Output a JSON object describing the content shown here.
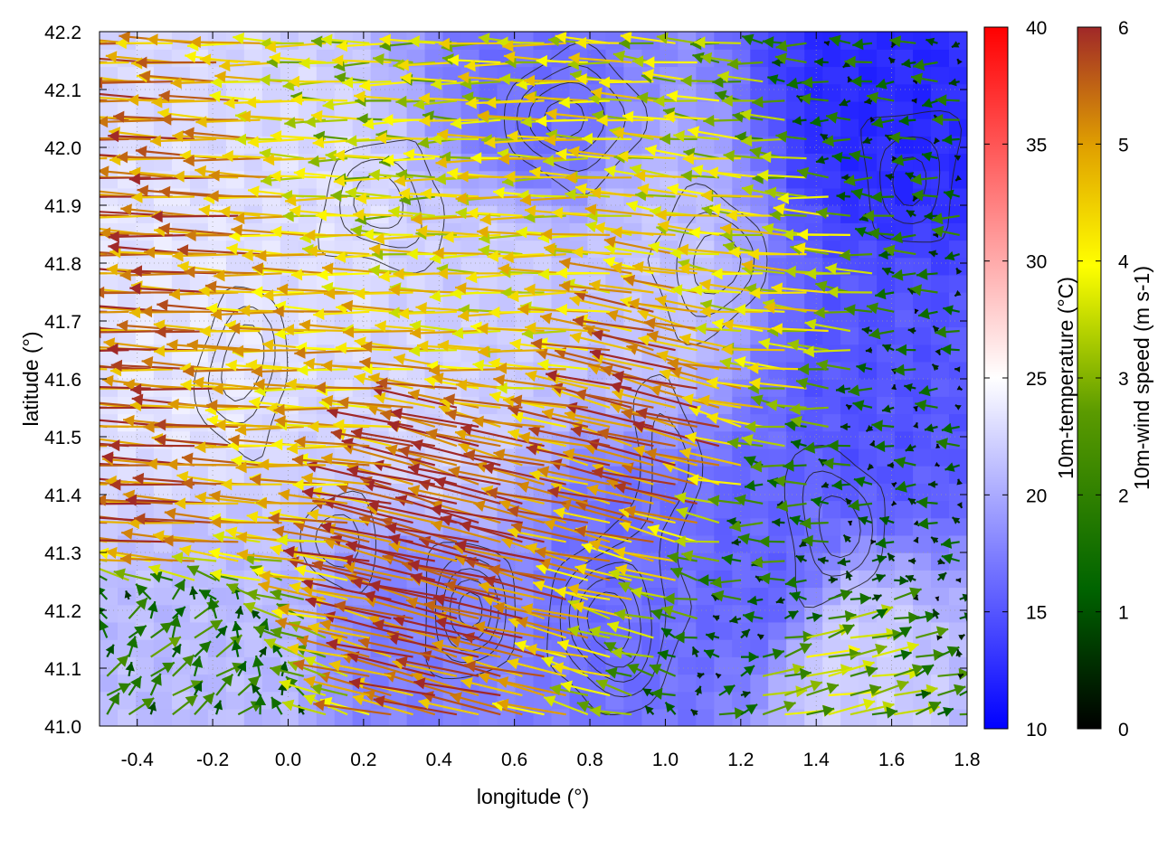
{
  "chart_data": {
    "type": "vector-field",
    "xlabel": "longitude (°)",
    "ylabel": "latitude (°)",
    "xlim": [
      -0.5,
      1.8
    ],
    "ylim": [
      41.0,
      42.2
    ],
    "x_ticks": [
      "-0.4",
      "-0.2",
      "0.0",
      "0.2",
      "0.4",
      "0.6",
      "0.8",
      "1.0",
      "1.2",
      "1.4",
      "1.6",
      "1.8"
    ],
    "y_ticks": [
      "41.0",
      "41.1",
      "41.2",
      "41.3",
      "41.4",
      "41.5",
      "41.6",
      "41.7",
      "41.8",
      "41.9",
      "42.0",
      "42.1",
      "42.2"
    ],
    "grid": true,
    "background_field": {
      "name": "10m-temperature",
      "colorbar_label": "10m-temperature (°C)",
      "range": [
        10,
        40
      ],
      "ticks": [
        "10",
        "15",
        "20",
        "25",
        "30",
        "35",
        "40"
      ],
      "colors": [
        "#0000ff",
        "#ffffff",
        "#ff0000"
      ],
      "regions": [
        {
          "lon": -0.25,
          "lat": 41.65,
          "temp": 23.5
        },
        {
          "lon": 0.1,
          "lat": 41.8,
          "temp": 23
        },
        {
          "lon": 0.35,
          "lat": 41.55,
          "temp": 22.5
        },
        {
          "lon": 0.55,
          "lat": 41.75,
          "temp": 22
        },
        {
          "lon": 0.95,
          "lat": 41.75,
          "temp": 21.5
        },
        {
          "lon": 1.25,
          "lat": 41.3,
          "temp": 16
        },
        {
          "lon": 1.55,
          "lat": 41.55,
          "temp": 15
        },
        {
          "lon": 1.6,
          "lat": 42.1,
          "temp": 12.5
        },
        {
          "lon": 0.9,
          "lat": 41.25,
          "temp": 16.5
        },
        {
          "lon": 1.5,
          "lat": 41.08,
          "temp": 22
        },
        {
          "lon": 0.65,
          "lat": 42.1,
          "temp": 16.5
        },
        {
          "lon": 0.35,
          "lat": 41.15,
          "temp": 17.5
        },
        {
          "lon": -0.2,
          "lat": 41.15,
          "temp": 21
        }
      ]
    },
    "vector_field": {
      "name": "10m-wind speed",
      "colorbar_label": "10m-wind speed (m s-1)",
      "range": [
        0,
        6
      ],
      "ticks": [
        "0",
        "1",
        "2",
        "3",
        "4",
        "5",
        "6"
      ],
      "colors": [
        "#000000",
        "#006400",
        "#5a9a00",
        "#ffff00",
        "#e0a000",
        "#a02828"
      ],
      "grid_lon": [
        -0.48,
        1.78
      ],
      "grid_lat": [
        41.02,
        42.18
      ],
      "nx": 40,
      "ny": 36,
      "regimes": [
        {
          "lon": -0.3,
          "lat": 41.8,
          "u": -5.2,
          "v": 0.2
        },
        {
          "lon": -0.3,
          "lat": 41.4,
          "u": -5.5,
          "v": 0.3
        },
        {
          "lon": 0.1,
          "lat": 41.6,
          "u": -4.3,
          "v": 0.1
        },
        {
          "lon": 0.3,
          "lat": 42.05,
          "u": -3.2,
          "v": 0.0
        },
        {
          "lon": 0.6,
          "lat": 41.8,
          "u": -3.8,
          "v": 0.0
        },
        {
          "lon": 0.45,
          "lat": 41.35,
          "u": -5.6,
          "v": 1.4
        },
        {
          "lon": 1.05,
          "lat": 41.5,
          "u": -5.2,
          "v": 1.3
        },
        {
          "lon": 1.35,
          "lat": 41.75,
          "u": -3.6,
          "v": 0.3
        },
        {
          "lon": 1.3,
          "lat": 41.3,
          "u": -1.4,
          "v": 0.0
        },
        {
          "lon": 1.65,
          "lat": 41.55,
          "u": -0.7,
          "v": 0.0
        },
        {
          "lon": 1.6,
          "lat": 42.05,
          "u": -1.0,
          "v": 0.0
        },
        {
          "lon": 1.4,
          "lat": 41.08,
          "u": 2.8,
          "v": 0.6
        },
        {
          "lon": -0.3,
          "lat": 41.1,
          "u": 1.2,
          "v": 1.2
        }
      ]
    },
    "contours": {
      "color": "#202020",
      "centers": [
        {
          "lon": -0.12,
          "lat": 41.62,
          "amp": 1.0,
          "sx": 0.1,
          "sy": 0.12
        },
        {
          "lon": 0.48,
          "lat": 41.2,
          "amp": 1.3,
          "sx": 0.1,
          "sy": 0.1
        },
        {
          "lon": 0.86,
          "lat": 41.18,
          "amp": 1.5,
          "sx": 0.13,
          "sy": 0.12
        },
        {
          "lon": 0.75,
          "lat": 42.05,
          "amp": 1.2,
          "sx": 0.14,
          "sy": 0.09
        },
        {
          "lon": 1.12,
          "lat": 41.8,
          "amp": 1.0,
          "sx": 0.12,
          "sy": 0.1
        },
        {
          "lon": 0.25,
          "lat": 41.9,
          "amp": 0.9,
          "sx": 0.15,
          "sy": 0.1
        },
        {
          "lon": 1.45,
          "lat": 41.35,
          "amp": 0.9,
          "sx": 0.12,
          "sy": 0.12
        },
        {
          "lon": 1.65,
          "lat": 41.95,
          "amp": 0.8,
          "sx": 0.12,
          "sy": 0.12
        },
        {
          "lon": 0.15,
          "lat": 41.32,
          "amp": 0.7,
          "sx": 0.1,
          "sy": 0.08
        },
        {
          "lon": 1.0,
          "lat": 41.45,
          "amp": 0.7,
          "sx": 0.08,
          "sy": 0.15
        }
      ],
      "levels": [
        0.25,
        0.5,
        0.75,
        1.0,
        1.25
      ]
    }
  }
}
